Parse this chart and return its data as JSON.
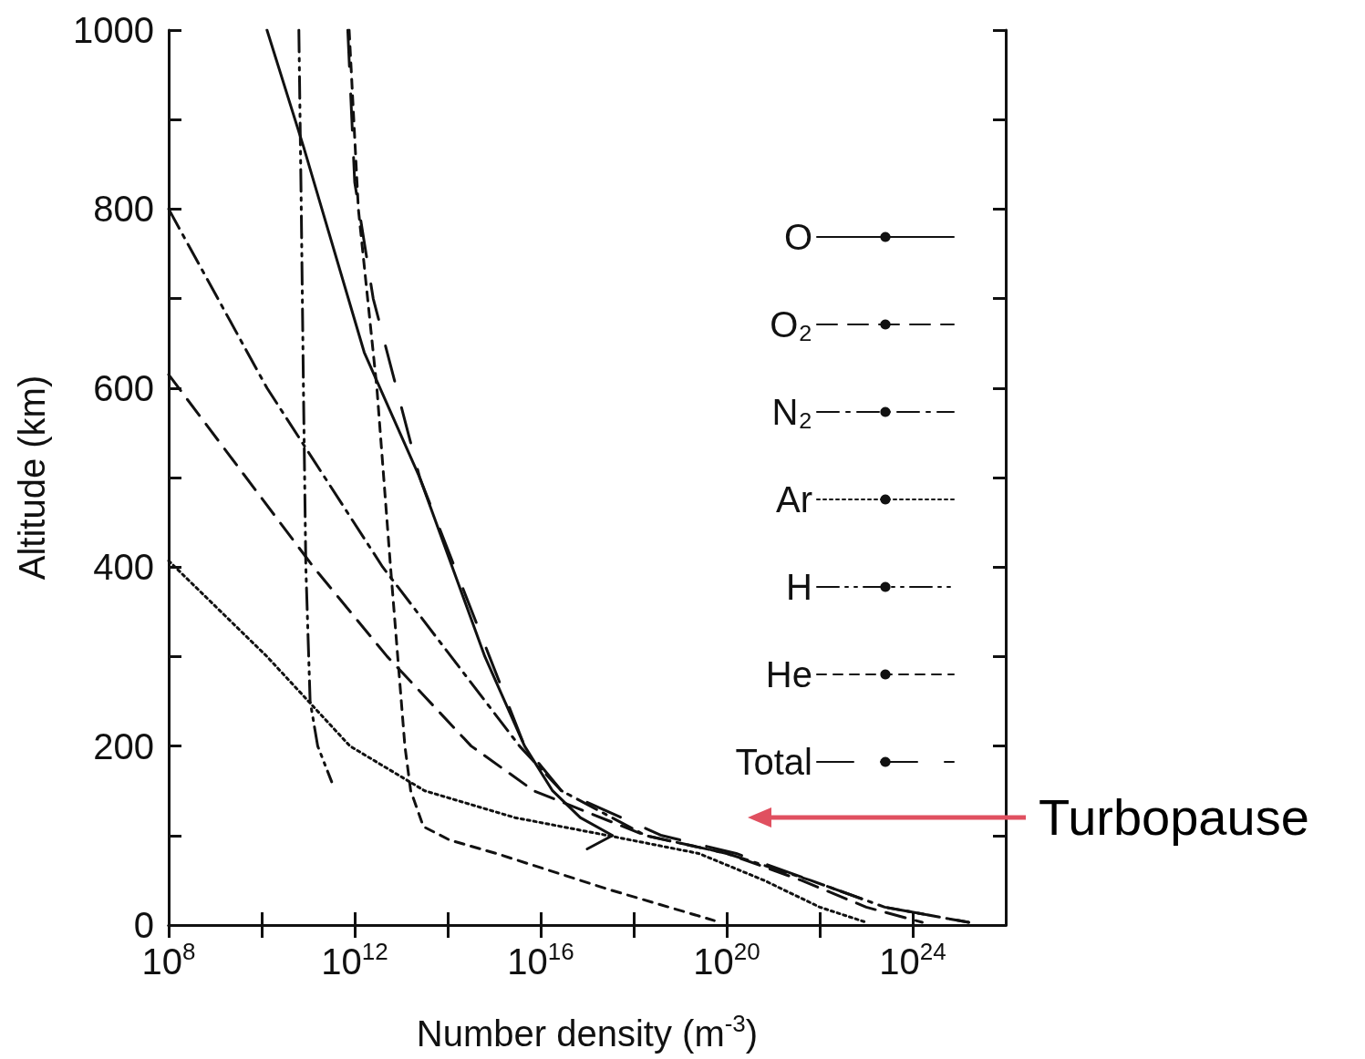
{
  "chart_data": {
    "type": "line",
    "xlabel": "Number density (m$^{-3}$)",
    "ylabel": "Altitude (km)",
    "log": "x",
    "xlim": [
      100000000.0,
      1e+26
    ],
    "xticks": [
      {
        "value": 100000000.0,
        "label": "10$^{8}$"
      },
      {
        "value": 10000000000.0,
        "label": null
      },
      {
        "value": 1000000000000.0,
        "label": "10$^{12}$"
      },
      {
        "value": 100000000000000.0,
        "label": null
      },
      {
        "value": 1e+16,
        "label": "10$^{16}$"
      },
      {
        "value": 1e+18,
        "label": null
      },
      {
        "value": 1e+20,
        "label": "10$^{20}$"
      },
      {
        "value": 1e+22,
        "label": null
      },
      {
        "value": 1e+24,
        "label": "10$^{24}$"
      },
      {
        "value": 1e+26,
        "label": null
      }
    ],
    "ylim": [
      0,
      1000
    ],
    "yticks": [
      0,
      {
        "value": 100,
        "label": null
      },
      200,
      {
        "value": 300,
        "label": null
      },
      400,
      {
        "value": 500,
        "label": null
      },
      600,
      {
        "value": 700,
        "label": null
      },
      800,
      {
        "value": 900,
        "label": null
      },
      1000
    ],
    "grid": false,
    "legend": "right",
    "marker": "none",
    "series": [
      {
        "name": "O",
        "color": "#111111",
        "line_style": "solid",
        "x": [
          13000000000.0,
          79000000000.0,
          1600000000000.0,
          25000000000000.0,
          630000000000000.0,
          4500000000000000.0,
          1.8e+16,
          7.1e+16,
          3.5e+17,
          1e+17
        ],
        "values": [
          1000,
          870,
          640,
          500,
          300,
          200,
          150,
          120,
          100,
          85
        ]
      },
      {
        "name": "O₂",
        "color": "#111111",
        "line_style": "dashed",
        "x": [
          100000000.0,
          130000000000.0,
          5000000000000.0,
          320000000000000.0,
          7100000000000000.0,
          1.8e+18,
          1e+20,
          4e+21,
          1e+23,
          1.6e+24
        ],
        "values": [
          615,
          400,
          300,
          200,
          150,
          100,
          80,
          50,
          20,
          3
        ]
      },
      {
        "name": "N₂",
        "color": "#111111",
        "line_style": "dashdot",
        "x": [
          100000000.0,
          13000000000.0,
          4000000000000.0,
          3500000000000000.0,
          2.8e+16,
          1.8e+18,
          1e+20,
          6.3e+21,
          2.5e+23,
          1.6e+25
        ],
        "values": [
          800,
          600,
          400,
          200,
          150,
          100,
          80,
          50,
          20,
          3
        ]
      },
      {
        "name": "Ar",
        "color": "#111111",
        "line_style": "dotted",
        "x": [
          100000000.0,
          13000000000.0,
          790000000000.0,
          32000000000000.0,
          2800000000000000.0,
          2.8e+17,
          2.5e+19,
          6.3e+20,
          1e+22,
          1e+23
        ],
        "values": [
          407,
          300,
          200,
          150,
          120,
          100,
          80,
          50,
          20,
          3
        ]
      },
      {
        "name": "H",
        "color": "#111111",
        "line_style": "dashdotdot",
        "x": [
          63000000000.0,
          71000000000.0,
          79000000000.0,
          89000000000.0,
          110000000000.0,
          160000000000.0,
          320000000000.0
        ],
        "values": [
          1000,
          800,
          600,
          400,
          250,
          200,
          160
        ]
      },
      {
        "name": "He",
        "color": "#111111",
        "line_style": "shortdash",
        "x": [
          760000000000.0,
          1200000000000.0,
          3000000000000.0,
          5900000000000.0,
          12000000000000.0,
          16000000000000.0,
          30000000000000.0,
          110000000000000.0,
          1100000000000000.0,
          2.8e+17,
          5.4e+19
        ],
        "values": [
          1000,
          800,
          600,
          400,
          200,
          150,
          110,
          95,
          80,
          40,
          5
        ]
      },
      {
        "name": "Total",
        "color": "#111111",
        "line_style": "longdash",
        "x": [
          710000000000.0,
          1000000000000.0,
          2500000000000.0,
          25000000000000.0,
          790000000000000.0,
          4500000000000000.0,
          2.8e+16,
          4e+18,
          1.6e+20,
          6.3e+21,
          2.5e+23,
          1.6e+25
        ],
        "values": [
          1000,
          830,
          700,
          500,
          300,
          200,
          150,
          100,
          80,
          50,
          20,
          3
        ]
      }
    ],
    "annotations": [
      "Turbopause"
    ]
  }
}
